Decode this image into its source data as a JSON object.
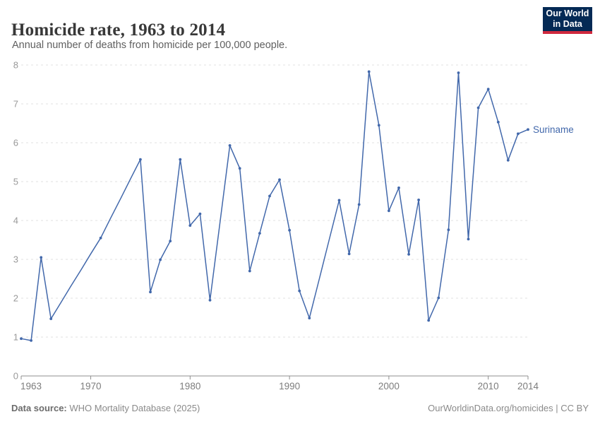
{
  "header": {
    "title": "Homicide rate, 1963 to 2014",
    "subtitle": "Annual number of deaths from homicide per 100,000 people."
  },
  "logo": {
    "line1": "Our World",
    "line2": "in Data",
    "bg_color": "#042a55",
    "accent_color": "#d0293e"
  },
  "chart_data": {
    "type": "line",
    "title": "Homicide rate, 1963 to 2014",
    "subtitle": "Annual number of deaths from homicide per 100,000 people.",
    "xlabel": "",
    "ylabel": "",
    "ylim": [
      0,
      8
    ],
    "yticks": [
      0,
      1,
      2,
      3,
      4,
      5,
      6,
      7,
      8
    ],
    "xticks": [
      1963,
      1970,
      1980,
      1990,
      2000,
      2010,
      2014
    ],
    "grid": "horizontal-dashed",
    "legend_position": "end-of-line-label",
    "series": [
      {
        "name": "Suriname",
        "color": "#4268ab",
        "years": [
          1963,
          1964,
          1965,
          1966,
          1967,
          1968,
          1969,
          1970,
          1971,
          1972,
          1973,
          1974,
          1975,
          1976,
          1977,
          1978,
          1979,
          1980,
          1981,
          1982,
          1983,
          1984,
          1985,
          1986,
          1987,
          1988,
          1989,
          1990,
          1991,
          1992,
          1993,
          1994,
          1995,
          1996,
          1997,
          1998,
          1999,
          2000,
          2001,
          2002,
          2003,
          2004,
          2005,
          2006,
          2007,
          2008,
          2009,
          2010,
          2011,
          2012,
          2013,
          2014
        ],
        "values": [
          0.96,
          0.91,
          3.05,
          1.47,
          1.89,
          2.31,
          2.72,
          3.14,
          3.55,
          4.06,
          4.56,
          5.07,
          5.57,
          2.16,
          2.99,
          3.47,
          5.57,
          3.87,
          4.17,
          1.95,
          3.94,
          5.93,
          5.34,
          2.7,
          3.67,
          4.63,
          5.05,
          3.75,
          2.19,
          1.49,
          2.5,
          3.51,
          4.52,
          3.14,
          4.41,
          7.83,
          6.45,
          4.25,
          4.84,
          3.13,
          4.53,
          1.43,
          2.01,
          3.76,
          7.8,
          3.52,
          6.9,
          7.38,
          6.53,
          5.55,
          6.23,
          6.34
        ],
        "interpolated_years": [
          1967,
          1968,
          1969,
          1970,
          1972,
          1973,
          1974,
          1983,
          1993,
          1994
        ]
      }
    ],
    "axis_color": "#8f8f8f",
    "gridline_color": "#e2e2e2"
  },
  "footer": {
    "source_label": "Data source:",
    "source_text": " WHO Mortality Database (2025)",
    "right_text": "OurWorldinData.org/homicides | CC BY"
  }
}
